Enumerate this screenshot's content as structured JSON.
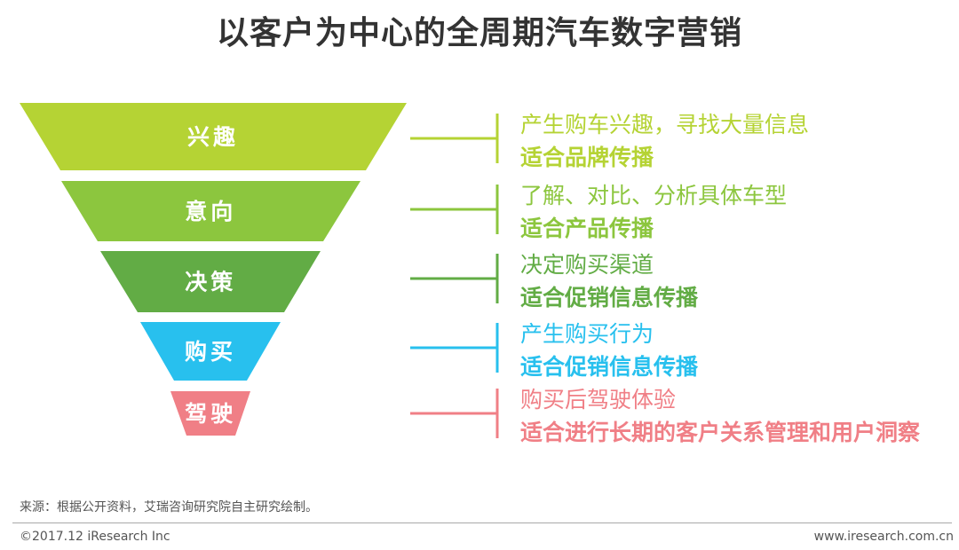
{
  "title": "以客户为中心的全周期汽车数字营销",
  "stages": [
    {
      "label": "兴趣",
      "color": "#b5d334",
      "desc": "产生购车兴趣，寻找大量信息",
      "strategy": "适合品牌传播"
    },
    {
      "label": "意向",
      "color": "#8cc63e",
      "desc": "了解、对比、分析具体车型",
      "strategy": "适合产品传播"
    },
    {
      "label": "决策",
      "color": "#62ac45",
      "desc": "决定购买渠道",
      "strategy": "适合促销信息传播"
    },
    {
      "label": "购买",
      "color": "#28c0ee",
      "desc": "产生购买行为",
      "strategy": "适合促销信息传播"
    },
    {
      "label": "驾驶",
      "color": "#f07f86",
      "desc": "购买后驾驶体验",
      "strategy": "适合进行长期的客户关系管理和用户洞察"
    }
  ],
  "footer": {
    "source": "来源：根据公开资料，艾瑞咨询研究院自主研究绘制。",
    "copyright": "©2017.12 iResearch Inc",
    "website": "www.iresearch.com.cn"
  }
}
